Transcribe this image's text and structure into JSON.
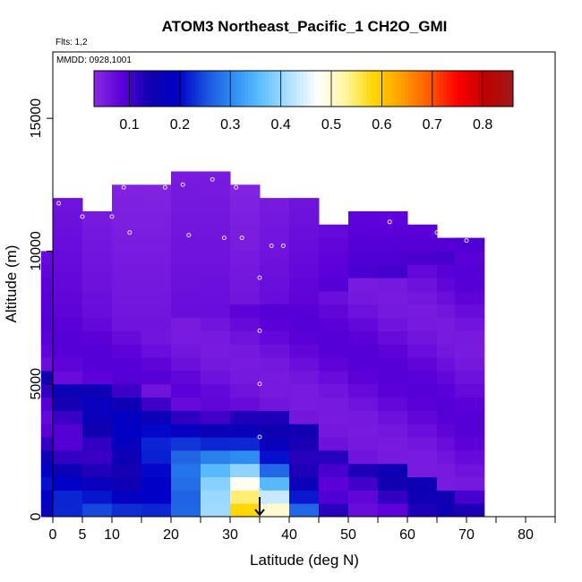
{
  "chart_data": {
    "type": "heatmap",
    "title": "ATOM3 Northeast_Pacific_1 CH2O_GMI",
    "flights_note": "Flts: 1,2",
    "date_note": "MMDD: 0928,1001",
    "xlabel": "Latitude (deg N)",
    "ylabel": "Altitude (m)",
    "xlim": [
      0,
      85
    ],
    "ylim": [
      0,
      17500
    ],
    "x_ticks": [
      0,
      5,
      10,
      20,
      30,
      40,
      50,
      60,
      70,
      80
    ],
    "x_minor_ticks": [
      15,
      25,
      35,
      45,
      55,
      65,
      75,
      85
    ],
    "y_ticks": [
      0,
      5000,
      10000,
      15000
    ],
    "colorbar": {
      "ticks": [
        0.1,
        0.2,
        0.3,
        0.4,
        0.5,
        0.6,
        0.7,
        0.8
      ],
      "range": [
        0.03,
        0.86
      ],
      "colors": [
        "#8a2be2",
        "#5a00d8",
        "#1000b0",
        "#0000c8",
        "#1a50e0",
        "#2f8ff0",
        "#60c0ff",
        "#b0e0ff",
        "#ffffff",
        "#fff6a0",
        "#ffd700",
        "#ffa000",
        "#ff5a00",
        "#ff0000",
        "#c00000",
        "#a01818"
      ]
    },
    "profile_marker": {
      "latitude": 35,
      "label": "arrow"
    },
    "columns": [
      {
        "lat": 0.5,
        "top": 9800,
        "bot": 7800,
        "mid": 5200,
        "low": 0.17,
        "upper": 0.09
      },
      {
        "lat": 2.5,
        "top": 11900,
        "bot": 7500,
        "mid": 5000,
        "low": 0.18,
        "upper": 0.08
      },
      {
        "lat": 7.5,
        "top": 11300,
        "bot": 7300,
        "mid": 5000,
        "low": 0.2,
        "upper": 0.07
      },
      {
        "lat": 12.5,
        "top": 12500,
        "bot": 7000,
        "mid": 4800,
        "low": 0.22,
        "upper": 0.06
      },
      {
        "lat": 17.5,
        "top": 12400,
        "bot": 7000,
        "mid": 4600,
        "low": 0.26,
        "upper": 0.06
      },
      {
        "lat": 22.5,
        "top": 12800,
        "bot": 7100,
        "mid": 4400,
        "low": 0.32,
        "upper": 0.07
      },
      {
        "lat": 27.5,
        "top": 12600,
        "bot": 7300,
        "mid": 4200,
        "low": 0.42,
        "upper": 0.07
      },
      {
        "lat": 32.5,
        "top": 12200,
        "bot": 7600,
        "mid": 4000,
        "low": 0.55,
        "upper": 0.06
      },
      {
        "lat": 37.5,
        "top": 11800,
        "bot": 7900,
        "mid": 3600,
        "low": 0.45,
        "upper": 0.07
      },
      {
        "lat": 42.5,
        "top": 11700,
        "bot": 8200,
        "mid": 3200,
        "low": 0.25,
        "upper": 0.08
      },
      {
        "lat": 47.5,
        "top": 11000,
        "bot": 8400,
        "mid": 2500,
        "low": 0.15,
        "upper": 0.09
      },
      {
        "lat": 52.5,
        "top": 11300,
        "bot": 8600,
        "mid": 2000,
        "low": 0.12,
        "upper": 0.1
      },
      {
        "lat": 57.5,
        "top": 11100,
        "bot": 9000,
        "mid": 1600,
        "low": 0.11,
        "upper": 0.1
      },
      {
        "lat": 62.5,
        "top": 10800,
        "bot": 9200,
        "mid": 1200,
        "low": 0.11,
        "upper": 0.1
      },
      {
        "lat": 67.5,
        "top": 10500,
        "bot": 9500,
        "mid": 900,
        "low": 0.1,
        "upper": 0.1
      },
      {
        "lat": 70.5,
        "top": 10300,
        "bot": 9800,
        "mid": 700,
        "low": 0.1,
        "upper": 0.1
      }
    ],
    "flight_track": [
      {
        "lat": 1.0,
        "alt": 11800
      },
      {
        "lat": 5.0,
        "alt": 11300
      },
      {
        "lat": 10.0,
        "alt": 11300
      },
      {
        "lat": 12.0,
        "alt": 12400
      },
      {
        "lat": 19.0,
        "alt": 12400
      },
      {
        "lat": 22.0,
        "alt": 12500
      },
      {
        "lat": 27.0,
        "alt": 12700
      },
      {
        "lat": 31.0,
        "alt": 12400
      },
      {
        "lat": 13.0,
        "alt": 10700
      },
      {
        "lat": 23.0,
        "alt": 10600
      },
      {
        "lat": 29.0,
        "alt": 10500
      },
      {
        "lat": 32.0,
        "alt": 10500
      },
      {
        "lat": 37.0,
        "alt": 10200
      },
      {
        "lat": 39.0,
        "alt": 10200
      },
      {
        "lat": 57.0,
        "alt": 11100
      },
      {
        "lat": 65.0,
        "alt": 10700
      },
      {
        "lat": 70.0,
        "alt": 10400
      },
      {
        "lat": 35.0,
        "alt": 9000
      },
      {
        "lat": 35.0,
        "alt": 7000
      },
      {
        "lat": 35.0,
        "alt": 5000
      },
      {
        "lat": 35.0,
        "alt": 3000
      },
      {
        "lat": 35.0,
        "alt": 1000
      },
      {
        "lat": 36.0,
        "alt": 400
      }
    ]
  }
}
